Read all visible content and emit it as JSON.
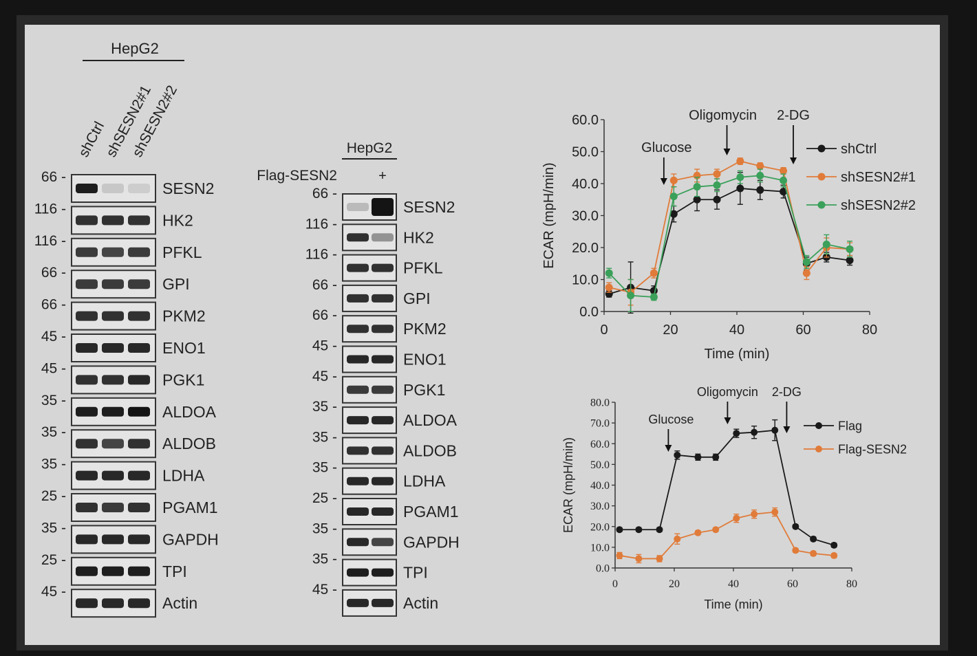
{
  "blotA": {
    "header": "HepG2",
    "lanes": [
      "shCtrl",
      "shSESN2#1",
      "shSESN2#2"
    ],
    "rows": [
      {
        "protein": "SESN2",
        "mw": "66",
        "intensity": [
          0.95,
          0.08,
          0.05
        ]
      },
      {
        "protein": "HK2",
        "mw": "116",
        "intensity": [
          0.85,
          0.85,
          0.85
        ]
      },
      {
        "protein": "PFKL",
        "mw": "116",
        "intensity": [
          0.8,
          0.75,
          0.8
        ]
      },
      {
        "protein": "GPI",
        "mw": "66",
        "intensity": [
          0.8,
          0.8,
          0.8
        ]
      },
      {
        "protein": "PKM2",
        "mw": "66",
        "intensity": [
          0.85,
          0.85,
          0.85
        ]
      },
      {
        "protein": "ENO1",
        "mw": "45",
        "intensity": [
          0.9,
          0.9,
          0.9
        ]
      },
      {
        "protein": "PGK1",
        "mw": "45",
        "intensity": [
          0.85,
          0.85,
          0.9
        ]
      },
      {
        "protein": "ALDOA",
        "mw": "35",
        "intensity": [
          0.95,
          0.95,
          1.0
        ]
      },
      {
        "protein": "ALDOB",
        "mw": "35",
        "intensity": [
          0.85,
          0.75,
          0.85
        ]
      },
      {
        "protein": "LDHA",
        "mw": "35",
        "intensity": [
          0.9,
          0.9,
          0.9
        ]
      },
      {
        "protein": "PGAM1",
        "mw": "25",
        "intensity": [
          0.85,
          0.8,
          0.85
        ]
      },
      {
        "protein": "GAPDH",
        "mw": "35",
        "intensity": [
          0.9,
          0.9,
          0.9
        ]
      },
      {
        "protein": "TPI",
        "mw": "25",
        "intensity": [
          0.95,
          0.95,
          0.95
        ]
      },
      {
        "protein": "Actin",
        "mw": "45",
        "intensity": [
          0.9,
          0.9,
          0.9
        ]
      }
    ]
  },
  "blotB": {
    "header": "HepG2",
    "condition_label": "Flag-SESN2",
    "condition_values": [
      "",
      "+"
    ],
    "rows": [
      {
        "protein": "SESN2",
        "mw": "66",
        "intensity": [
          0.15,
          1.0
        ]
      },
      {
        "protein": "HK2",
        "mw": "116",
        "intensity": [
          0.85,
          0.35
        ]
      },
      {
        "protein": "PFKL",
        "mw": "116",
        "intensity": [
          0.85,
          0.85
        ]
      },
      {
        "protein": "GPI",
        "mw": "66",
        "intensity": [
          0.85,
          0.85
        ]
      },
      {
        "protein": "PKM2",
        "mw": "66",
        "intensity": [
          0.85,
          0.85
        ]
      },
      {
        "protein": "ENO1",
        "mw": "45",
        "intensity": [
          0.9,
          0.9
        ]
      },
      {
        "protein": "PGK1",
        "mw": "45",
        "intensity": [
          0.8,
          0.8
        ]
      },
      {
        "protein": "ALDOA",
        "mw": "35",
        "intensity": [
          0.9,
          0.9
        ]
      },
      {
        "protein": "ALDOB",
        "mw": "35",
        "intensity": [
          0.85,
          0.85
        ]
      },
      {
        "protein": "LDHA",
        "mw": "35",
        "intensity": [
          0.9,
          0.9
        ]
      },
      {
        "protein": "PGAM1",
        "mw": "25",
        "intensity": [
          0.9,
          0.9
        ]
      },
      {
        "protein": "GAPDH",
        "mw": "35",
        "intensity": [
          0.9,
          0.75
        ]
      },
      {
        "protein": "TPI",
        "mw": "35",
        "intensity": [
          0.95,
          0.95
        ]
      },
      {
        "protein": "Actin",
        "mw": "45",
        "intensity": [
          0.9,
          0.9
        ]
      }
    ]
  },
  "chart_data": [
    {
      "type": "line",
      "xlabel": "Time (min)",
      "ylabel": "ECAR (mpH/min)",
      "xlim": [
        0,
        80
      ],
      "ylim": [
        0,
        60
      ],
      "xticks": [
        "0",
        "20",
        "40",
        "60",
        "80"
      ],
      "yticks": [
        "0.0",
        "10.0",
        "20.0",
        "30.0",
        "40.0",
        "50.0",
        "60.0"
      ],
      "legend_position": "right",
      "annotations": [
        {
          "text": "Glucose",
          "x": 18
        },
        {
          "text": "Oligomycin",
          "x": 37
        },
        {
          "text": "2-DG",
          "x": 57
        }
      ],
      "x": [
        1.5,
        8,
        15,
        21,
        28,
        34,
        41,
        47,
        54,
        61,
        67,
        74
      ],
      "series": [
        {
          "name": "shCtrl",
          "color": "#1a1a1a",
          "values": [
            5.5,
            7.5,
            6.5,
            30.5,
            35,
            35,
            38.5,
            38,
            37.5,
            15,
            17,
            16
          ],
          "err": [
            1,
            8,
            1.5,
            2.5,
            3.5,
            3,
            5,
            3,
            2,
            2,
            1.5,
            1.5
          ]
        },
        {
          "name": "shSESN2#1",
          "color": "#e07b39",
          "values": [
            7.5,
            6,
            12,
            41,
            42.5,
            43,
            47,
            45.5,
            44,
            12,
            20,
            19.5
          ],
          "err": [
            1.5,
            4,
            1.5,
            2,
            2,
            1.5,
            1,
            1,
            1,
            2,
            3,
            2
          ]
        },
        {
          "name": "shSESN2#2",
          "color": "#3aa05a",
          "values": [
            12,
            5,
            4.5,
            36,
            39,
            39.5,
            42,
            42.5,
            41,
            15.5,
            21,
            19.5
          ],
          "err": [
            1.5,
            5,
            1,
            3,
            3,
            2,
            2,
            2,
            2,
            2,
            3,
            2.5
          ]
        }
      ]
    },
    {
      "type": "line",
      "xlabel": "Time (min)",
      "ylabel": "ECAR (mpH/min)",
      "xlim": [
        0,
        80
      ],
      "ylim": [
        0,
        80
      ],
      "xticks": [
        "0",
        "20",
        "40",
        "60",
        "80"
      ],
      "yticks": [
        "0.0",
        "10.0",
        "20.0",
        "30.0",
        "40.0",
        "50.0",
        "60.0",
        "70.0",
        "80.0"
      ],
      "legend_position": "right",
      "annotations": [
        {
          "text": "Glucose",
          "x": 18
        },
        {
          "text": "Oligomycin",
          "x": 38
        },
        {
          "text": "2-DG",
          "x": 58
        }
      ],
      "x": [
        1.5,
        8,
        15,
        21,
        28,
        34,
        41,
        47,
        54,
        61,
        67,
        74
      ],
      "series": [
        {
          "name": "Flag",
          "color": "#1a1a1a",
          "values": [
            18.5,
            18.5,
            18.5,
            54.5,
            53.5,
            53.5,
            65,
            65.5,
            66.5,
            20,
            14,
            11
          ],
          "err": [
            1,
            1,
            1,
            2,
            1.5,
            1.5,
            2,
            3,
            5,
            1,
            1,
            1
          ]
        },
        {
          "name": "Flag-SESN2",
          "color": "#e07b39",
          "values": [
            6,
            4.5,
            4.5,
            14,
            17,
            18.5,
            24,
            26,
            27,
            8.5,
            7,
            6
          ],
          "err": [
            1.5,
            2,
            1.5,
            2.5,
            1,
            1,
            2,
            2,
            2,
            1,
            1,
            1
          ]
        }
      ]
    }
  ]
}
